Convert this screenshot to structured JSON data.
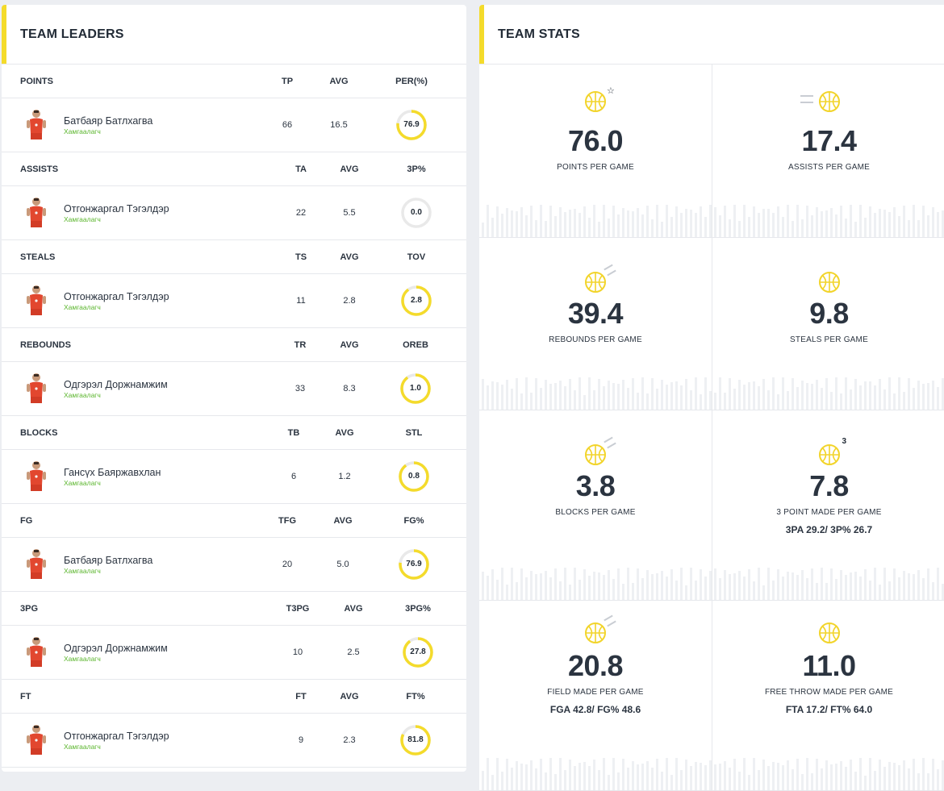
{
  "leaders": {
    "title": "TEAM LEADERS",
    "categories": [
      {
        "name": "POINTS",
        "col1": "TP",
        "col2": "AVG",
        "col3": "PER(%)",
        "player": "Батбаяр Батлхагва",
        "position": "Хамгаалагч",
        "v1": "66",
        "v2": "16.5",
        "v3": "76.9",
        "pct": 0.769
      },
      {
        "name": "ASSISTS",
        "col1": "TA",
        "col2": "AVG",
        "col3": "3P%",
        "player": "Отгонжаргал Тэгэлдэр",
        "position": "Хамгаалагч",
        "v1": "22",
        "v2": "5.5",
        "v3": "0.0",
        "pct": 0.0
      },
      {
        "name": "STEALS",
        "col1": "TS",
        "col2": "AVG",
        "col3": "TOV",
        "player": "Отгонжаргал Тэгэлдэр",
        "position": "Хамгаалагч",
        "v1": "11",
        "v2": "2.8",
        "v3": "2.8",
        "pct": 0.9
      },
      {
        "name": "REBOUNDS",
        "col1": "TR",
        "col2": "AVG",
        "col3": "OREB",
        "player": "Одгэрэл Доржнамжим",
        "position": "Хамгаалагч",
        "v1": "33",
        "v2": "8.3",
        "v3": "1.0",
        "pct": 0.9
      },
      {
        "name": "BLOCKS",
        "col1": "TB",
        "col2": "AVG",
        "col3": "STL",
        "player": "Гансүх Баяржавхлан",
        "position": "Хамгаалагч",
        "v1": "6",
        "v2": "1.2",
        "v3": "0.8",
        "pct": 0.9
      },
      {
        "name": "FG",
        "col1": "TFG",
        "col2": "AVG",
        "col3": "FG%",
        "player": "Батбаяр Батлхагва",
        "position": "Хамгаалагч",
        "v1": "20",
        "v2": "5.0",
        "v3": "76.9",
        "pct": 0.769
      },
      {
        "name": "3PG",
        "col1": "T3PG",
        "col2": "AVG",
        "col3": "3PG%",
        "player": "Одгэрэл Доржнамжим",
        "position": "Хамгаалагч",
        "v1": "10",
        "v2": "2.5",
        "v3": "27.8",
        "pct": 0.9
      },
      {
        "name": "FT",
        "col1": "FT",
        "col2": "AVG",
        "col3": "FT%",
        "player": "Отгонжаргал Тэгэлдэр",
        "position": "Хамгаалагч",
        "v1": "9",
        "v2": "2.3",
        "v3": "81.8",
        "pct": 0.818
      }
    ]
  },
  "stats": {
    "title": "TEAM STATS",
    "items": [
      {
        "value": "76.0",
        "label": "POINTS PER GAME",
        "sub": "",
        "icon": "basketball-star-icon"
      },
      {
        "value": "17.4",
        "label": "ASSISTS PER GAME",
        "sub": "",
        "icon": "basketball-pass-icon"
      },
      {
        "value": "39.4",
        "label": "REBOUNDS PER GAME",
        "sub": "",
        "icon": "basketball-motion-icon"
      },
      {
        "value": "9.8",
        "label": "STEALS PER GAME",
        "sub": "",
        "icon": "basketball-icon"
      },
      {
        "value": "3.8",
        "label": "BLOCKS PER GAME",
        "sub": "",
        "icon": "basketball-motion-icon"
      },
      {
        "value": "7.8",
        "label": "3 POINT MADE PER GAME",
        "sub": "3PA 29.2/ 3P% 26.7",
        "icon": "basketball-three-icon",
        "badge": "3"
      },
      {
        "value": "20.8",
        "label": "FIELD MADE PER GAME",
        "sub": "FGA 42.8/ FG% 48.6",
        "icon": "basketball-motion-icon"
      },
      {
        "value": "11.0",
        "label": "FREE THROW MADE PER GAME",
        "sub": "FTA 17.2/ FT% 64.0",
        "icon": "basketball-icon"
      }
    ]
  },
  "colors": {
    "accent": "#f4db2b",
    "ring_track": "#e9e9e9",
    "position_green": "#5ab52c"
  }
}
